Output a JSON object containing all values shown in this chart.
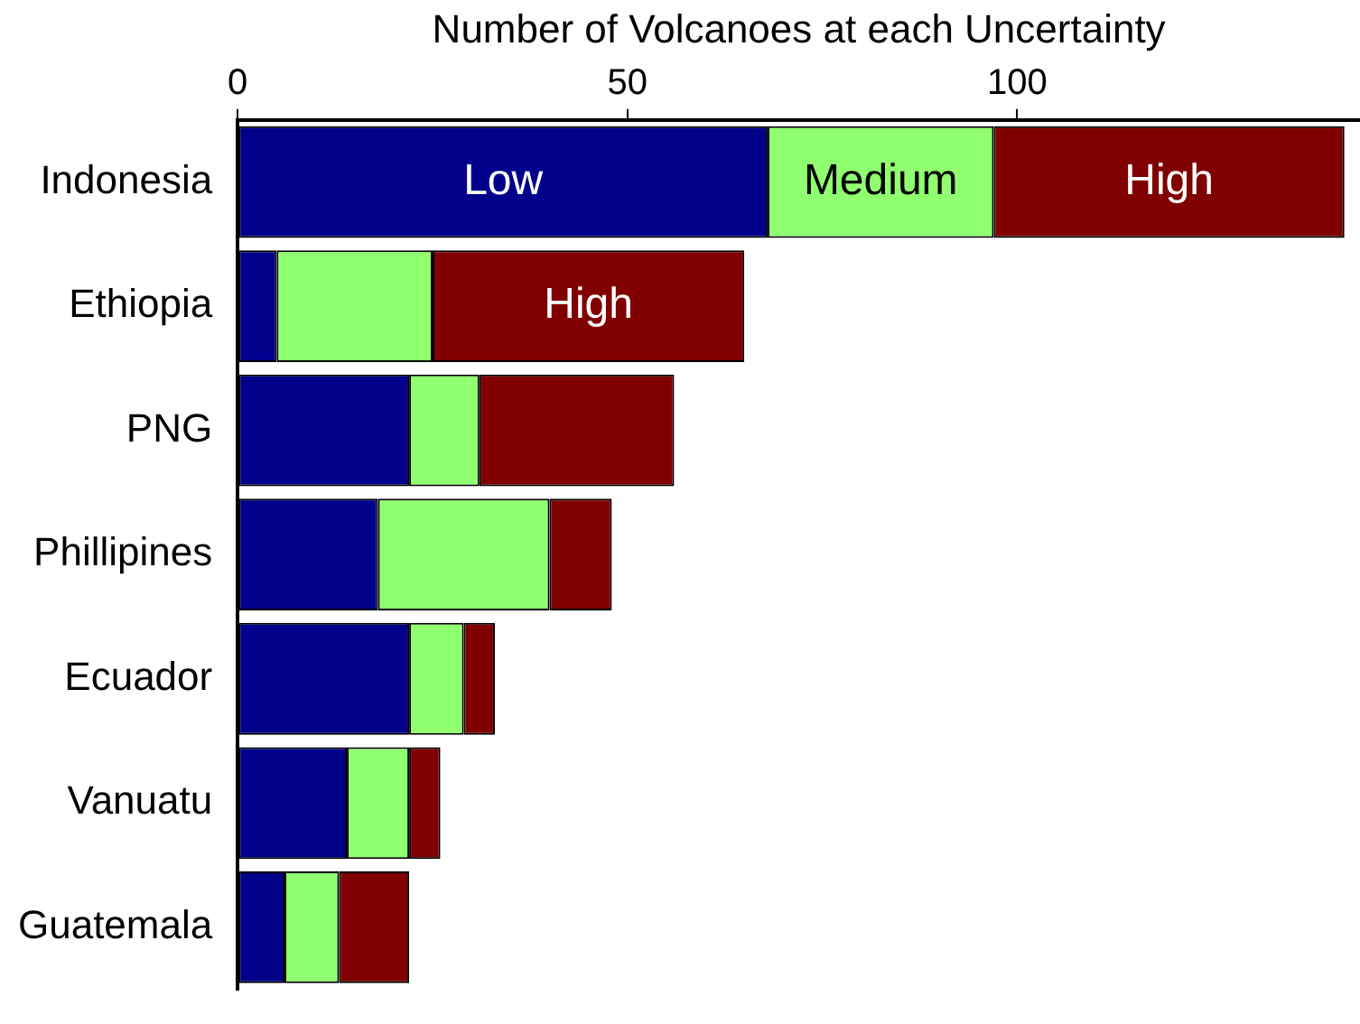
{
  "chart_data": {
    "type": "bar",
    "orientation": "horizontal",
    "stacked": true,
    "xlabel": "Number of Volcanoes at each Uncertainty",
    "categories": [
      "Indonesia",
      "Ethiopia",
      "PNG",
      "Phillipines",
      "Ecuador",
      "Vanuatu",
      "Guatemala"
    ],
    "series": [
      {
        "name": "Low",
        "color": "#00008b",
        "values": [
          68,
          5,
          22,
          18,
          22,
          14,
          6
        ]
      },
      {
        "name": "Medium",
        "color": "#90ff70",
        "values": [
          29,
          20,
          9,
          22,
          7,
          8,
          7
        ]
      },
      {
        "name": "High",
        "color": "#800000",
        "values": [
          45,
          40,
          25,
          8,
          4,
          4,
          9
        ]
      }
    ],
    "annotations": [
      {
        "text": "High",
        "x": 45,
        "y": "Ethiopia"
      }
    ],
    "xlim": [
      0,
      144
    ],
    "xticks": [
      0,
      50,
      100
    ],
    "grid": false,
    "legend": false
  }
}
